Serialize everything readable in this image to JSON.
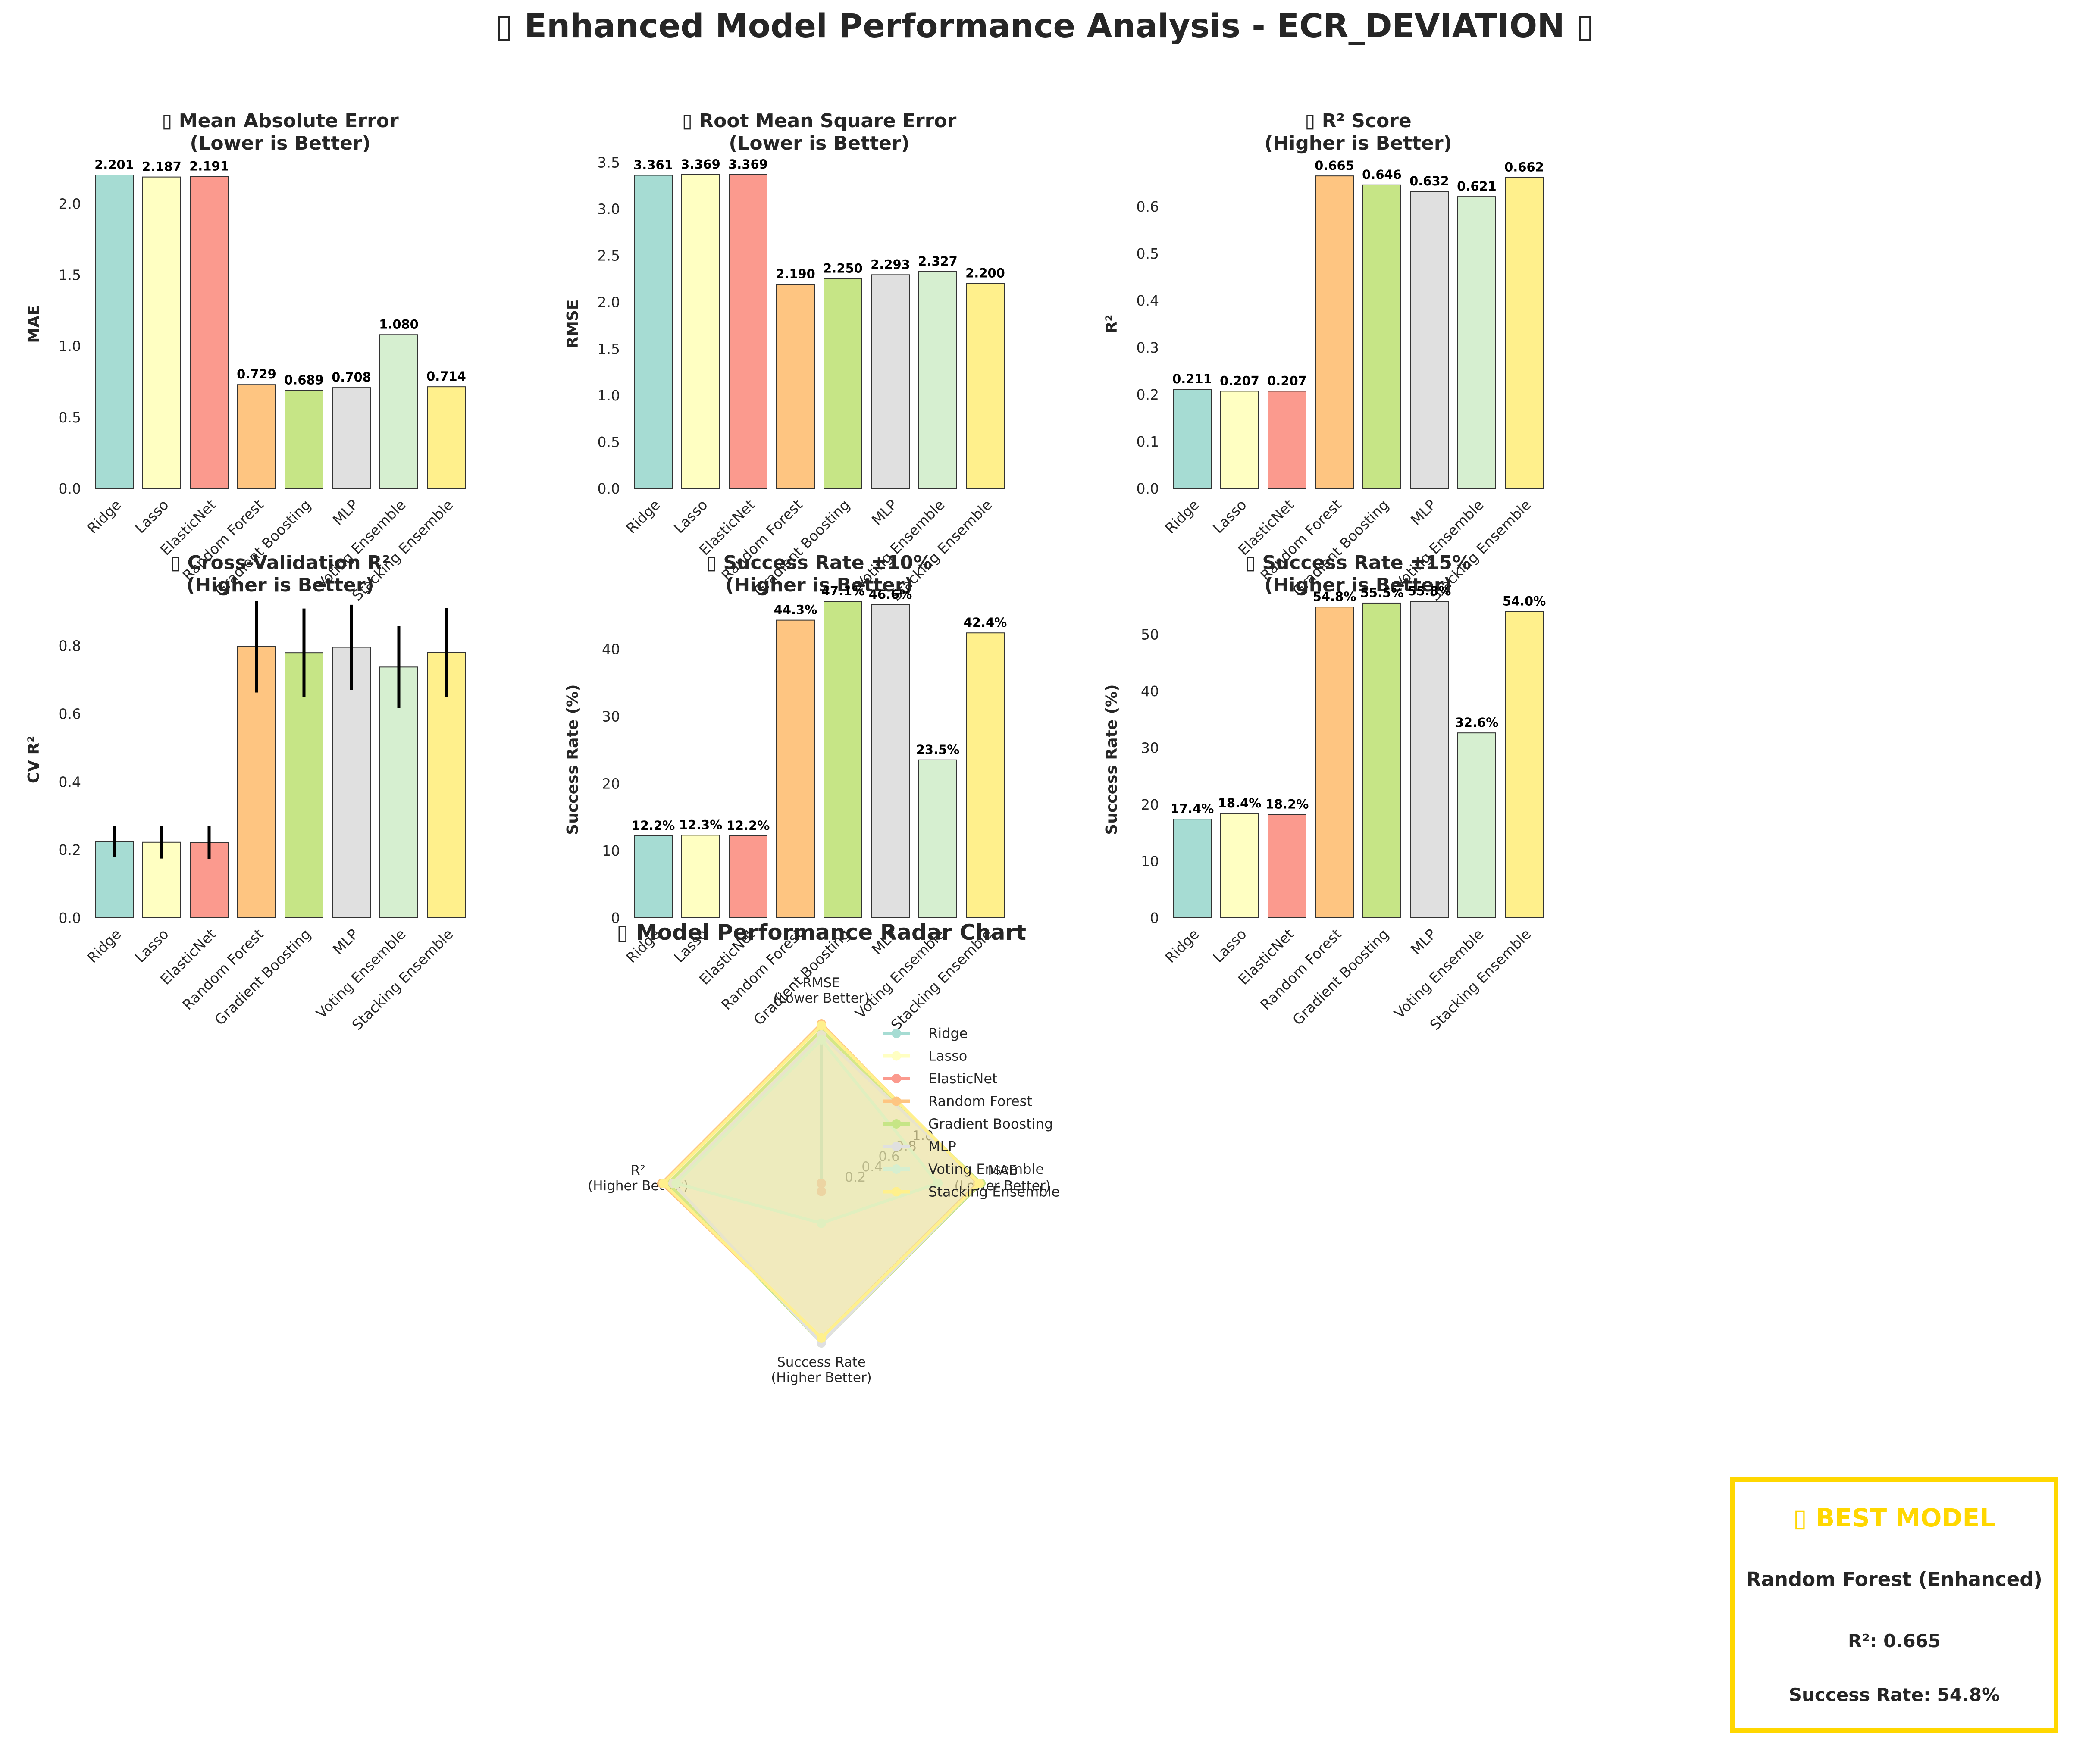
{
  "title": "▯ Enhanced Model Performance Analysis - ECR_DEVIATION ▯",
  "colors": [
    "#A6DCD3",
    "#FFFFC2",
    "#FB9A8E",
    "#FEC581",
    "#C6E586",
    "#E0E0E0",
    "#D6EFD0",
    "#FFF08C"
  ],
  "chart_data": [
    {
      "type": "bar",
      "title": "▯ Mean Absolute Error\n(Lower is Better)",
      "ylabel": "MAE",
      "categories": [
        "Ridge",
        "Lasso",
        "ElasticNet",
        "Random Forest",
        "Gradient Boosting",
        "MLP",
        "Voting Ensemble",
        "Stacking Ensemble"
      ],
      "values": [
        2.201,
        2.187,
        2.191,
        0.729,
        0.689,
        0.708,
        1.08,
        0.714
      ],
      "value_labels": [
        "2.201",
        "2.187",
        "2.191",
        "0.729",
        "0.689",
        "0.708",
        "1.080",
        "0.714"
      ],
      "ylim": [
        0,
        2.31
      ],
      "yticks": [
        "0.0",
        "0.5",
        "1.0",
        "1.5",
        "2.0"
      ],
      "ytick_values": [
        0,
        0.5,
        1.0,
        1.5,
        2.0
      ]
    },
    {
      "type": "bar",
      "title": "▯ Root Mean Square Error\n(Lower is Better)",
      "ylabel": "RMSE",
      "categories": [
        "Ridge",
        "Lasso",
        "ElasticNet",
        "Random Forest",
        "Gradient Boosting",
        "MLP",
        "Voting Ensemble",
        "Stacking Ensemble"
      ],
      "values": [
        3.361,
        3.369,
        3.369,
        2.19,
        2.25,
        2.293,
        2.327,
        2.2
      ],
      "value_labels": [
        "3.361",
        "3.369",
        "3.369",
        "2.190",
        "2.250",
        "2.293",
        "2.327",
        "2.200"
      ],
      "ylim": [
        0,
        3.53
      ],
      "yticks": [
        "0.0",
        "0.5",
        "1.0",
        "1.5",
        "2.0",
        "2.5",
        "3.0",
        "3.5"
      ],
      "ytick_values": [
        0,
        0.5,
        1.0,
        1.5,
        2.0,
        2.5,
        3.0,
        3.5
      ]
    },
    {
      "type": "bar",
      "title": "▯ R² Score\n(Higher is Better)",
      "ylabel": "R²",
      "categories": [
        "Ridge",
        "Lasso",
        "ElasticNet",
        "Random Forest",
        "Gradient Boosting",
        "MLP",
        "Voting Ensemble",
        "Stacking Ensemble"
      ],
      "values": [
        0.211,
        0.207,
        0.207,
        0.665,
        0.646,
        0.632,
        0.621,
        0.662
      ],
      "value_labels": [
        "0.211",
        "0.207",
        "0.207",
        "0.665",
        "0.646",
        "0.632",
        "0.621",
        "0.662"
      ],
      "ylim": [
        0,
        0.7
      ],
      "yticks": [
        "0.0",
        "0.1",
        "0.2",
        "0.3",
        "0.4",
        "0.5",
        "0.6"
      ],
      "ytick_values": [
        0,
        0.1,
        0.2,
        0.3,
        0.4,
        0.5,
        0.6
      ]
    },
    {
      "type": "bar",
      "title": "▯ Cross-Validation R²\n(Higher is Better)",
      "ylabel": "CV R²",
      "categories": [
        "Ridge",
        "Lasso",
        "ElasticNet",
        "Random Forest",
        "Gradient Boosting",
        "MLP",
        "Voting Ensemble",
        "Stacking Ensemble"
      ],
      "values": [
        0.224,
        0.222,
        0.221,
        0.797,
        0.779,
        0.795,
        0.737,
        0.78
      ],
      "errors": [
        0.045,
        0.048,
        0.048,
        0.135,
        0.13,
        0.125,
        0.12,
        0.13
      ],
      "value_labels": [],
      "ylim": [
        0,
        0.93
      ],
      "yticks": [
        "0.0",
        "0.2",
        "0.4",
        "0.6",
        "0.8"
      ],
      "ytick_values": [
        0,
        0.2,
        0.4,
        0.6,
        0.8
      ]
    },
    {
      "type": "bar",
      "title": "▯ Success Rate ±10%\n(Higher is Better)",
      "ylabel": "Success Rate (%)",
      "categories": [
        "Ridge",
        "Lasso",
        "ElasticNet",
        "Random Forest",
        "Gradient Boosting",
        "MLP",
        "Voting Ensemble",
        "Stacking Ensemble"
      ],
      "values": [
        12.2,
        12.3,
        12.2,
        44.3,
        47.1,
        46.6,
        23.5,
        42.4
      ],
      "value_labels": [
        "12.2%",
        "12.3%",
        "12.2%",
        "44.3%",
        "47.1%",
        "46.6%",
        "23.5%",
        "42.4%"
      ],
      "ylim": [
        0,
        47.1
      ],
      "yticks": [
        "0",
        "10",
        "20",
        "30",
        "40"
      ],
      "ytick_values": [
        0,
        10,
        20,
        30,
        40
      ]
    },
    {
      "type": "bar",
      "title": "▯ Success Rate ±15%\n(Higher is Better)",
      "ylabel": "Success Rate (%)",
      "categories": [
        "Ridge",
        "Lasso",
        "ElasticNet",
        "Random Forest",
        "Gradient Boosting",
        "MLP",
        "Voting Ensemble",
        "Stacking Ensemble"
      ],
      "values": [
        17.4,
        18.4,
        18.2,
        54.8,
        55.5,
        55.8,
        32.6,
        54.0
      ],
      "value_labels": [
        "17.4%",
        "18.4%",
        "18.2%",
        "54.8%",
        "55.5%",
        "55.8%",
        "32.6%",
        "54.0%"
      ],
      "ylim": [
        0,
        55.8
      ],
      "yticks": [
        "0",
        "10",
        "20",
        "30",
        "40",
        "50"
      ],
      "ytick_values": [
        0,
        10,
        20,
        30,
        40,
        50
      ]
    },
    {
      "type": "radar",
      "title": "▯ Model Performance Radar Chart",
      "axes": [
        "RMSE\n(Lower Better)",
        "MAE\n(Lower Better)",
        "Success Rate\n(Higher Better)",
        "R²\n(Higher Better)"
      ],
      "rticks": [
        "0.2",
        "0.4",
        "0.6",
        "0.8",
        "1.0"
      ],
      "rtick_values": [
        0.2,
        0.4,
        0.6,
        0.8,
        1.0
      ],
      "legend_position": "upper-right",
      "series": [
        {
          "name": "Ridge",
          "values": [
            0.92,
            0.0,
            0.0,
            0.0
          ]
        },
        {
          "name": "Lasso",
          "values": [
            0.0,
            0.0,
            0.0,
            0.0
          ]
        },
        {
          "name": "ElasticNet",
          "values": [
            0.0,
            0.0,
            0.05,
            0.0
          ]
        },
        {
          "name": "Random Forest",
          "values": [
            1.0,
            0.98,
            0.97,
            1.0
          ]
        },
        {
          "name": "Gradient Boosting",
          "values": [
            0.96,
            1.0,
            1.0,
            0.96
          ]
        },
        {
          "name": "MLP",
          "values": [
            0.93,
            0.99,
            1.0,
            0.93
          ]
        },
        {
          "name": "Voting Ensemble",
          "values": [
            0.9,
            0.73,
            0.25,
            0.91
          ]
        },
        {
          "name": "Stacking Ensemble",
          "values": [
            0.99,
            0.99,
            0.97,
            0.99
          ]
        }
      ]
    }
  ],
  "best_model": {
    "heading": "▯ BEST MODEL",
    "name": "Random Forest (Enhanced)",
    "r2": "R²: 0.665",
    "success_rate": "Success Rate: 54.8%"
  }
}
